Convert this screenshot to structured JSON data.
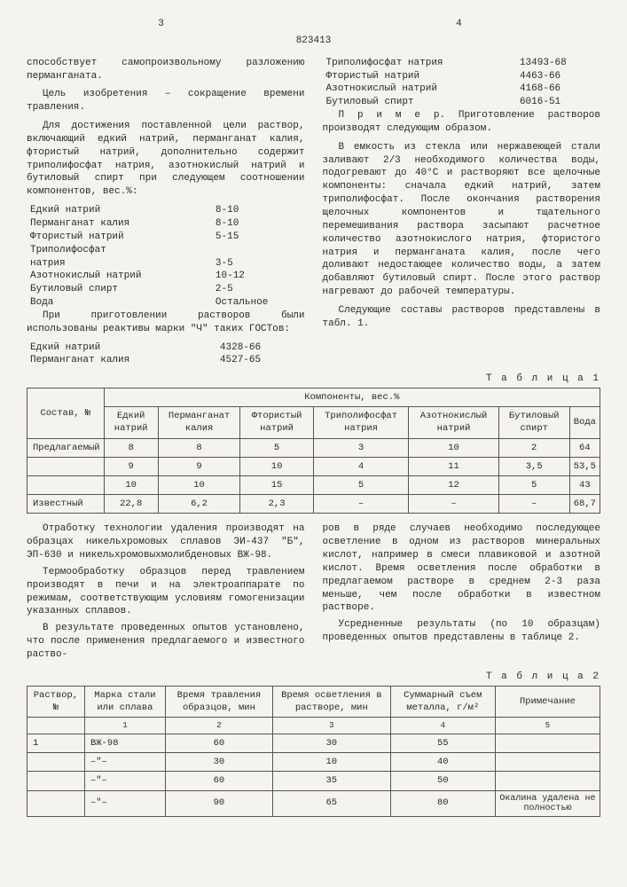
{
  "header": {
    "left_page": "3",
    "right_page": "4",
    "doc_number": "823413"
  },
  "left_col": {
    "p1": "способствует самопроизвольному разложению перманганата.",
    "p2": "Цель изобретения – сокращение времени травления.",
    "p3": "Для достижения поставленной цели раствор, включающий едкий натрий, перманганат калия, фтористый натрий, дополнительно содержит триполифосфат натрия, азотнокислый натрий и бутиловый спирт при следующем соотношении компонентов, вес.%:",
    "components": [
      {
        "name": "Едкий натрий",
        "val": "8-10"
      },
      {
        "name": "Перманганат калия",
        "val": "8-10"
      },
      {
        "name": "Фтористый натрий",
        "val": "5-15"
      },
      {
        "name": "Триполифосфат",
        "val": ""
      },
      {
        "name": "натрия",
        "val": "3-5"
      },
      {
        "name": "Азотнокислый натрий",
        "val": "10-12"
      },
      {
        "name": "Бутиловый спирт",
        "val": "2-5"
      },
      {
        "name": "Вода",
        "val": "Остальное"
      }
    ],
    "p4": "При приготовлении растворов были использованы реактивы марки \"Ч\" таких ГОСТов:",
    "gosts_left": [
      {
        "name": "Едкий натрий",
        "val": "4328-66"
      },
      {
        "name": "Перманганат калия",
        "val": "4527-65"
      }
    ]
  },
  "right_col": {
    "gosts_right": [
      {
        "name": "Триполифосфат натрия",
        "val": "13493-68"
      },
      {
        "name": "Фтористый натрий",
        "val": "4463-66"
      },
      {
        "name": "Азотнокислый натрий",
        "val": "4168-66"
      },
      {
        "name": "Бутиловый спирт",
        "val": "6016-51"
      }
    ],
    "p1": "П р и м е р. Приготовление растворов производят следующим образом.",
    "p2": "В емкость из стекла или нержавеющей стали заливают 2/3 необходимого количества воды, подогревают до 40°C и растворяют все щелочные компоненты: сначала едкий натрий, затем триполифосфат. После окончания растворения щелочных компонентов и тщательного перемешивания раствора засыпают расчетное количество азотнокислого натрия, фтористого натрия и перманганата калия, после чего доливают недостающее количество воды, а затем добавляют бутиловый спирт. После этого раствор нагревают до рабочей температуры.",
    "p3": "Следующие составы растворов представлены в табл. 1."
  },
  "line_markers": [
    "5",
    "10",
    "15",
    "20",
    "25"
  ],
  "table1": {
    "caption": "Т а б л и ц а 1",
    "head_group": "Компоненты, вес.%",
    "cols": [
      "Состав, №",
      "Едкий натрий",
      "Перманганат калия",
      "Фтористый натрий",
      "Триполифосфат натрия",
      "Азотнокислый натрий",
      "Бутиловый спирт",
      "Вода"
    ],
    "rows": [
      {
        "label": "Предлагаемый",
        "c": [
          "8",
          "8",
          "5",
          "3",
          "10",
          "2",
          "64"
        ]
      },
      {
        "label": "",
        "c": [
          "9",
          "9",
          "10",
          "4",
          "11",
          "3,5",
          "53,5"
        ]
      },
      {
        "label": "",
        "c": [
          "10",
          "10",
          "15",
          "5",
          "12",
          "5",
          "43"
        ]
      },
      {
        "label": "Известный",
        "c": [
          "22,8",
          "6,2",
          "2,3",
          "–",
          "–",
          "–",
          "68,7"
        ]
      }
    ]
  },
  "mid": {
    "left_p1": "Отработку технологии удаления производят на образцах никельхромовых сплавов ЭИ-437 \"Б\", ЭП-630 и никельхромовыхмолибденовых ВЖ-98.",
    "left_p2": "Термообработку образцов перед травлением производят в печи и на электроаппарате по режимам, соответствующим условиям гомогенизации указанных сплавов.",
    "left_p3": "В результате проведенных опытов установлено, что после применения предлагаемого и известного раство-",
    "right_p1": "ров в ряде случаев необходимо последующее осветление в одном из растворов минеральных кислот, например в смеси плавиковой и азотной кислот. Время осветления после обработки в предлагаемом растворе в среднем 2-3 раза меньше, чем после обработки в известном растворе.",
    "right_p2": "Усредненные результаты (по 10 образцам) проведенных опытов представлены в таблице 2.",
    "markers": [
      "40",
      "45",
      "50"
    ]
  },
  "table2": {
    "caption": "Т а б л и ц а 2",
    "cols": [
      "Раствор, №",
      "Марка стали или сплава",
      "Время травления образцов, мин",
      "Время осветления в растворе, мин",
      "Суммарный съем металла, г/м²",
      "Примечание"
    ],
    "subhead": [
      "",
      "1",
      "2",
      "3",
      "4",
      "5"
    ],
    "rows": [
      {
        "c": [
          "1",
          "ВЖ-98",
          "60",
          "30",
          "55",
          ""
        ]
      },
      {
        "c": [
          "",
          "–\"–",
          "30",
          "10",
          "40",
          ""
        ]
      },
      {
        "c": [
          "",
          "–\"–",
          "60",
          "35",
          "50",
          ""
        ]
      },
      {
        "c": [
          "",
          "–\"–",
          "90",
          "65",
          "80",
          "Окалина удалена не полностью"
        ]
      }
    ]
  }
}
